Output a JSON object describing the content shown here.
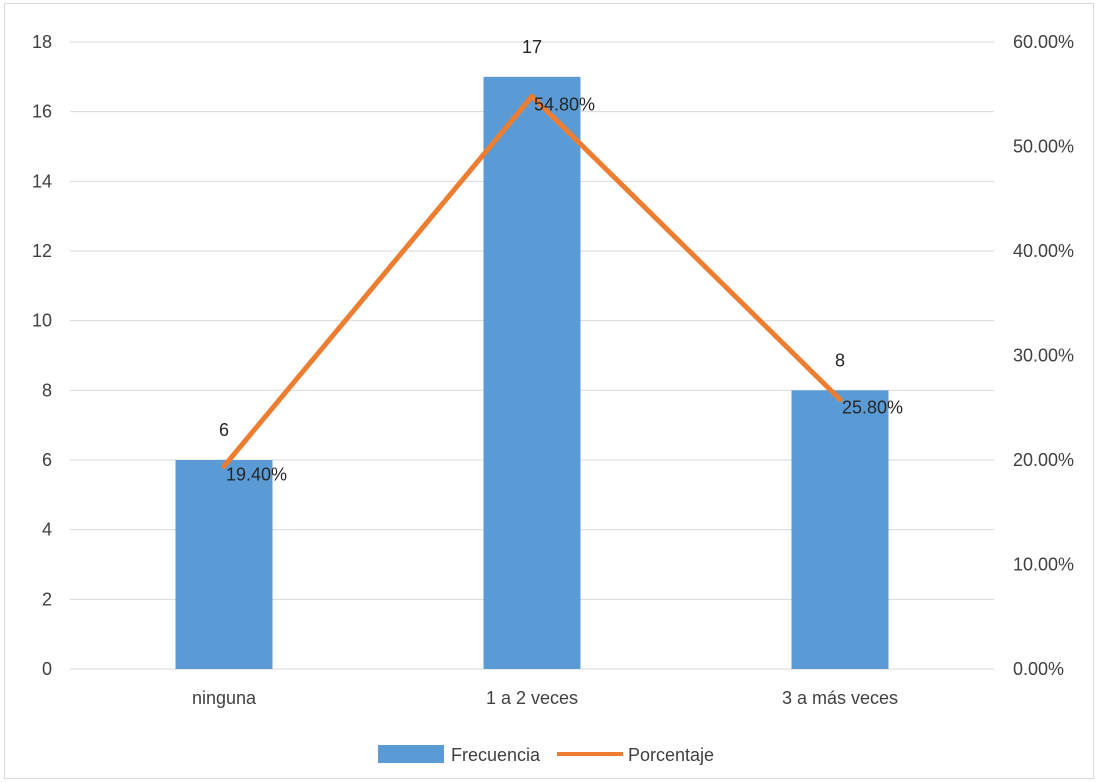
{
  "chart_data": {
    "type": "bar",
    "categories": [
      "ninguna",
      "1 a 2 veces",
      "3 a más veces"
    ],
    "series": [
      {
        "name": "Frecuencia",
        "type": "bar",
        "axis": "left",
        "values": [
          6,
          17,
          8
        ],
        "labels": [
          "6",
          "17",
          "8"
        ]
      },
      {
        "name": "Porcentaje",
        "type": "line",
        "axis": "right",
        "values": [
          19.4,
          54.8,
          25.8
        ],
        "labels": [
          "19.40%",
          "54.80%",
          "25.80%"
        ]
      }
    ],
    "ylim_left": [
      0,
      18
    ],
    "yticks_left": [
      "0",
      "2",
      "4",
      "6",
      "8",
      "10",
      "12",
      "14",
      "16",
      "18"
    ],
    "ylim_right": [
      0,
      60
    ],
    "yticks_right": [
      "0.00%",
      "10.00%",
      "20.00%",
      "30.00%",
      "40.00%",
      "50.00%",
      "60.00%"
    ],
    "grid": true,
    "legend_position": "bottom",
    "colors": {
      "bar": "#5b9bd5",
      "line": "#ed7d31",
      "grid": "#d9d9d9",
      "text": "#404040"
    }
  }
}
